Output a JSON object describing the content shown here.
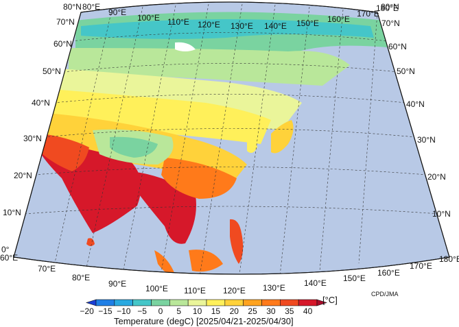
{
  "map": {
    "title": "Temperature (degC) [2025/04/21-2025/04/30]",
    "credit": "CPD/JMA",
    "unit": "[°C]",
    "lon_labels_top": [
      "80°E",
      "90°E",
      "100°E",
      "110°E",
      "120°E",
      "130°E",
      "140°E",
      "150°E",
      "160°E",
      "170°E",
      "180°E"
    ],
    "lon_labels_bottom": [
      "60°E",
      "70°E",
      "80°E",
      "90°E",
      "100°E",
      "110°E",
      "120°E",
      "130°E",
      "140°E",
      "150°E",
      "160°E",
      "170°E",
      "180°E"
    ],
    "lat_labels_left": [
      "0°",
      "10°N",
      "20°N",
      "30°N",
      "40°N",
      "50°N",
      "60°N",
      "70°N",
      "80°N"
    ],
    "lat_labels_right": [
      "80°N",
      "70°N",
      "60°N",
      "50°N",
      "40°N",
      "30°N",
      "20°N",
      "10°N"
    ],
    "colorbar": {
      "ticks": [
        "−20",
        "−15",
        "−10",
        "−5",
        "0",
        "5",
        "10",
        "15",
        "20",
        "25",
        "30",
        "35",
        "40"
      ],
      "colors": [
        "#1a3fd6",
        "#1f7fe6",
        "#2aa9e0",
        "#45c6c8",
        "#7ad3a0",
        "#b9e79a",
        "#eaf59a",
        "#fff05a",
        "#ffd23a",
        "#ffa31f",
        "#ff7a1a",
        "#f04a20",
        "#d6182a",
        "#a80d2a"
      ]
    }
  }
}
